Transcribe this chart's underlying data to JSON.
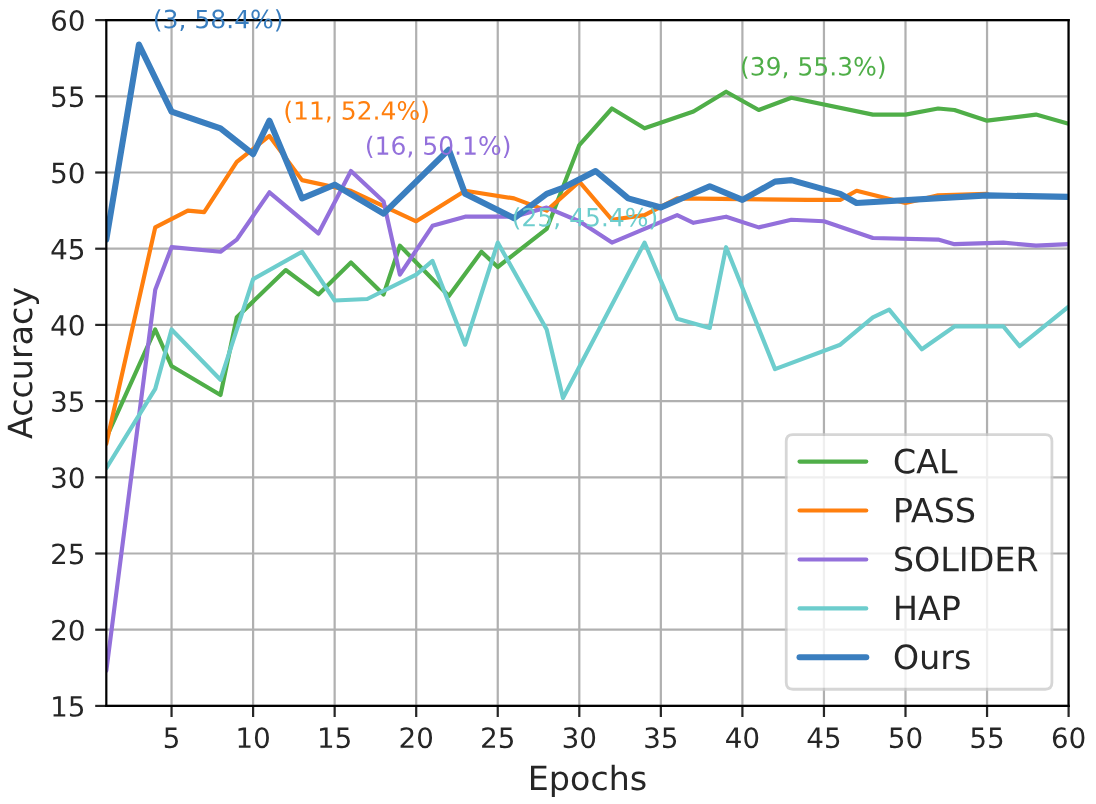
{
  "chart_data": {
    "type": "line",
    "xlabel": "Epochs",
    "ylabel": "Accuracy",
    "xlim": [
      1,
      60
    ],
    "xticks": [
      5,
      10,
      15,
      20,
      25,
      30,
      35,
      40,
      45,
      50,
      55,
      60
    ],
    "ylim": [
      15,
      60
    ],
    "yticks": [
      15,
      20,
      25,
      30,
      35,
      40,
      45,
      50,
      55,
      60
    ],
    "grid": true,
    "legend": "bottom right",
    "line_style": "solid",
    "marker": "none",
    "series": [
      {
        "name": "CAL",
        "color": "#4fae48",
        "x": [
          1,
          4,
          5,
          8,
          9,
          12,
          14,
          16,
          18,
          19,
          22,
          24,
          25,
          28,
          30,
          32,
          34,
          37,
          39,
          41,
          43,
          48,
          50,
          52,
          53,
          55,
          58,
          60
        ],
        "values": [
          32.6,
          39.7,
          37.3,
          35.4,
          40.5,
          43.6,
          42.0,
          44.1,
          42.0,
          45.2,
          41.9,
          44.8,
          43.8,
          46.3,
          51.8,
          54.2,
          52.9,
          54.0,
          55.3,
          54.1,
          54.9,
          53.8,
          53.8,
          54.2,
          54.1,
          53.4,
          53.8,
          53.2
        ]
      },
      {
        "name": "PASS",
        "color": "#ff7f0e",
        "x": [
          1,
          4,
          6,
          7,
          9,
          11,
          13,
          16,
          20,
          23,
          26,
          28,
          30,
          32,
          34,
          36,
          44,
          46,
          47,
          50,
          52,
          55
        ],
        "values": [
          32.2,
          46.4,
          47.5,
          47.4,
          50.7,
          52.4,
          49.5,
          48.8,
          46.8,
          48.8,
          48.3,
          47.5,
          49.4,
          46.9,
          47.2,
          48.3,
          48.2,
          48.2,
          48.8,
          48.0,
          48.5,
          48.6
        ]
      },
      {
        "name": "SOLIDER",
        "color": "#9370db",
        "x": [
          1,
          4,
          5,
          8,
          9,
          11,
          14,
          16,
          18,
          19,
          21,
          23,
          26,
          28,
          30,
          32,
          36,
          37,
          39,
          41,
          43,
          45,
          48,
          52,
          53,
          56,
          58,
          60
        ],
        "values": [
          17.3,
          42.3,
          45.1,
          44.8,
          45.6,
          48.7,
          46.0,
          50.1,
          48.1,
          43.3,
          46.5,
          47.1,
          47.1,
          47.7,
          46.8,
          45.4,
          47.2,
          46.7,
          47.1,
          46.4,
          46.9,
          46.8,
          45.7,
          45.6,
          45.3,
          45.4,
          45.2,
          45.3
        ]
      },
      {
        "name": "HAP",
        "color": "#6dcdcd",
        "x": [
          1,
          4,
          5,
          8,
          10,
          13,
          15,
          17,
          20,
          21,
          23,
          25,
          28,
          29,
          34,
          36,
          38,
          39,
          42,
          46,
          48,
          49,
          51,
          53,
          56,
          57,
          60
        ],
        "values": [
          30.6,
          35.8,
          39.7,
          36.4,
          43.0,
          44.8,
          41.6,
          41.7,
          43.3,
          44.2,
          38.7,
          45.4,
          39.7,
          35.2,
          45.4,
          40.4,
          39.8,
          45.1,
          37.1,
          38.7,
          40.5,
          41.0,
          38.4,
          39.9,
          39.9,
          38.6,
          41.2
        ]
      },
      {
        "name": "Ours",
        "color": "#3a7ebf",
        "x": [
          1,
          3,
          5,
          8,
          10,
          11,
          13,
          15,
          18,
          22,
          23,
          26,
          28,
          29,
          31,
          33,
          35,
          38,
          40,
          42,
          43,
          46,
          47,
          55,
          60
        ],
        "values": [
          45.6,
          58.4,
          54.0,
          52.9,
          51.2,
          53.4,
          48.3,
          49.2,
          47.3,
          51.5,
          48.6,
          47.0,
          48.6,
          49.0,
          50.1,
          48.3,
          47.7,
          49.1,
          48.2,
          49.4,
          49.5,
          48.6,
          48.0,
          48.5,
          48.4
        ]
      }
    ],
    "annotations": [
      {
        "text": "(3, 58.4%)",
        "x": 3,
        "y": 58.4
      },
      {
        "text": "(11, 52.4%)",
        "x": 11,
        "y": 52.4
      },
      {
        "text": "(16, 50.1%)",
        "x": 16,
        "y": 50.1
      },
      {
        "text": "(25, 45.4%)",
        "x": 25,
        "y": 45.4
      },
      {
        "text": "(39, 55.3%)",
        "x": 39,
        "y": 55.3
      }
    ]
  }
}
